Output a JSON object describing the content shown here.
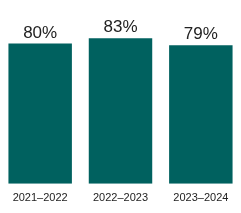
{
  "chart_data": {
    "type": "bar",
    "categories": [
      "2021–2022",
      "2022–2023",
      "2023–2024"
    ],
    "values": [
      80,
      83,
      79
    ],
    "value_labels": [
      "80%",
      "83%",
      "79%"
    ],
    "color": "#00615f",
    "data_labels": true,
    "grid": false,
    "tick_labels": "x"
  }
}
